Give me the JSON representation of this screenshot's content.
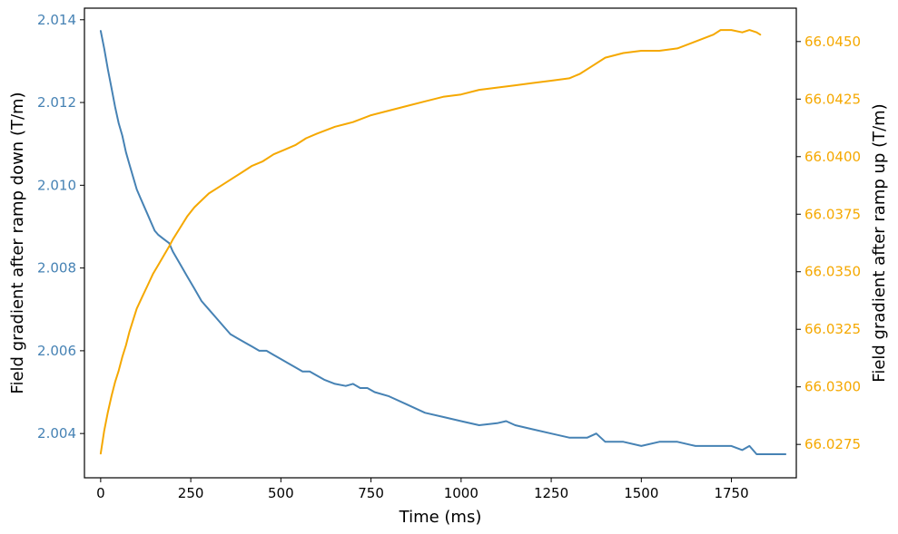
{
  "chart_data": {
    "type": "line",
    "title": "",
    "xlabel": "Time (ms)",
    "ylabel_left": "Field gradient after ramp down (T/m)",
    "ylabel_right": "Field gradient after ramp up (T/m)",
    "xlim": [
      -45,
      1930
    ],
    "ylim_left": [
      2.00293,
      2.01428
    ],
    "ylim_right": [
      66.02605,
      66.04645
    ],
    "x_ticks": [
      0,
      250,
      500,
      750,
      1000,
      1250,
      1500,
      1750
    ],
    "x_tick_labels": [
      "0",
      "250",
      "500",
      "750",
      "1000",
      "1250",
      "1500",
      "1750"
    ],
    "y_left_ticks": [
      2.004,
      2.006,
      2.008,
      2.01,
      2.012,
      2.014
    ],
    "y_left_tick_labels": [
      "2.004",
      "2.006",
      "2.008",
      "2.010",
      "2.012",
      "2.014"
    ],
    "y_right_ticks": [
      66.0275,
      66.03,
      66.0325,
      66.035,
      66.0375,
      66.04,
      66.0425,
      66.045
    ],
    "y_right_tick_labels": [
      "66.0275",
      "66.0300",
      "66.0325",
      "66.0350",
      "66.0375",
      "66.0400",
      "66.0425",
      "66.0450"
    ],
    "grid": false,
    "colors": {
      "left_series": "#4682b4",
      "right_series": "#f5a800",
      "axes": "#000000"
    },
    "series": [
      {
        "axis": "left",
        "x": [
          0,
          10,
          20,
          30,
          40,
          50,
          60,
          70,
          80,
          90,
          100,
          110,
          120,
          130,
          140,
          150,
          160,
          175,
          190,
          200,
          220,
          240,
          260,
          280,
          300,
          320,
          340,
          360,
          380,
          400,
          420,
          440,
          460,
          480,
          500,
          520,
          540,
          560,
          580,
          600,
          620,
          650,
          680,
          700,
          720,
          740,
          760,
          800,
          850,
          900,
          950,
          1000,
          1050,
          1100,
          1125,
          1150,
          1200,
          1250,
          1300,
          1350,
          1375,
          1400,
          1450,
          1500,
          1550,
          1600,
          1650,
          1700,
          1750,
          1780,
          1800,
          1820,
          1840,
          1860,
          1880,
          1900
        ],
        "y": [
          2.01373,
          2.0133,
          2.0128,
          2.01235,
          2.0119,
          2.0115,
          2.0112,
          2.0108,
          2.0105,
          2.0102,
          2.0099,
          2.0097,
          2.0095,
          2.0093,
          2.0091,
          2.0089,
          2.0088,
          2.0087,
          2.0086,
          2.0084,
          2.0081,
          2.0078,
          2.0075,
          2.0072,
          2.007,
          2.0068,
          2.0066,
          2.0064,
          2.0063,
          2.0062,
          2.0061,
          2.006,
          2.006,
          2.0059,
          2.0058,
          2.0057,
          2.0056,
          2.0055,
          2.0055,
          2.0054,
          2.0053,
          2.0052,
          2.00515,
          2.0052,
          2.0051,
          2.0051,
          2.005,
          2.0049,
          2.0047,
          2.0045,
          2.0044,
          2.0043,
          2.0042,
          2.00425,
          2.0043,
          2.0042,
          2.0041,
          2.004,
          2.0039,
          2.0039,
          2.004,
          2.0038,
          2.0038,
          2.0037,
          2.0038,
          2.0038,
          2.0037,
          2.0037,
          2.0037,
          2.0036,
          2.0037,
          2.0035,
          2.0035,
          2.0035,
          2.0035,
          2.0035
        ]
      },
      {
        "axis": "right",
        "x": [
          0,
          10,
          20,
          30,
          40,
          50,
          60,
          70,
          80,
          90,
          100,
          115,
          130,
          145,
          160,
          175,
          190,
          200,
          220,
          240,
          260,
          280,
          300,
          330,
          360,
          390,
          420,
          450,
          480,
          510,
          540,
          570,
          600,
          650,
          700,
          750,
          800,
          850,
          900,
          950,
          1000,
          1050,
          1100,
          1150,
          1200,
          1250,
          1300,
          1330,
          1360,
          1400,
          1450,
          1500,
          1550,
          1600,
          1650,
          1700,
          1720,
          1750,
          1780,
          1800,
          1820,
          1830
        ],
        "y": [
          66.0271,
          66.0281,
          66.0289,
          66.0296,
          66.0302,
          66.0307,
          66.0313,
          66.0318,
          66.0324,
          66.0329,
          66.0334,
          66.0339,
          66.0344,
          66.0349,
          66.0353,
          66.0357,
          66.0361,
          66.0364,
          66.0369,
          66.0374,
          66.0378,
          66.0381,
          66.0384,
          66.0387,
          66.039,
          66.0393,
          66.0396,
          66.0398,
          66.0401,
          66.0403,
          66.0405,
          66.0408,
          66.041,
          66.0413,
          66.0415,
          66.0418,
          66.042,
          66.0422,
          66.0424,
          66.0426,
          66.0427,
          66.0429,
          66.043,
          66.0431,
          66.0432,
          66.0433,
          66.0434,
          66.0436,
          66.0439,
          66.0443,
          66.0445,
          66.0446,
          66.0446,
          66.0447,
          66.045,
          66.0453,
          66.0455,
          66.0455,
          66.0454,
          66.0455,
          66.0454,
          66.0453
        ]
      }
    ]
  }
}
